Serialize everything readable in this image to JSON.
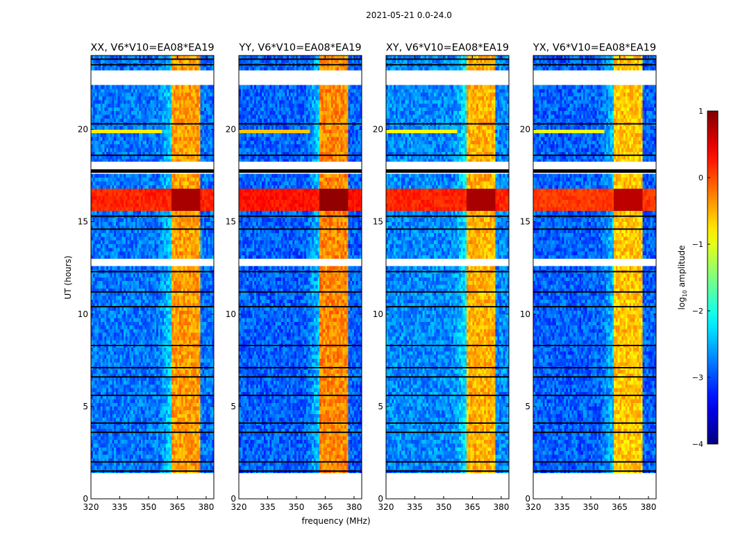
{
  "chart_data": {
    "type": "heatmap",
    "title": "2021-05-21 0.0-24.0",
    "xlabel": "frequency (MHz)",
    "ylabel": "UT (hours)",
    "xlim": [
      320,
      384
    ],
    "ylim": [
      0,
      24
    ],
    "xticks": [
      320,
      335,
      350,
      365,
      380
    ],
    "yticks": [
      0,
      5,
      10,
      15,
      20
    ],
    "colorbar": {
      "label_main": "log",
      "label_sub": "10",
      "label_rest": " amplitude",
      "range": [
        -4,
        1
      ],
      "ticks": [
        1,
        0,
        -1,
        -2,
        -3,
        -4
      ],
      "tick_labels": [
        "1",
        "0",
        "−1",
        "−2",
        "−3",
        "−4"
      ],
      "colormap": "jet"
    },
    "panels": [
      {
        "title": "XX, V6*V10=EA08*EA19",
        "base": -2.8,
        "rfi_level": -0.4,
        "storm_level": 0.4,
        "line20_level": -0.8
      },
      {
        "title": "YY, V6*V10=EA08*EA19",
        "base": -2.9,
        "rfi_level": -0.3,
        "storm_level": 0.5,
        "line20_level": -0.6
      },
      {
        "title": "XY, V6*V10=EA08*EA19",
        "base": -2.7,
        "rfi_level": -0.5,
        "storm_level": 0.4,
        "line20_level": -0.9
      },
      {
        "title": "YX, V6*V10=EA08*EA19",
        "base": -2.9,
        "rfi_level": -0.6,
        "storm_level": 0.3,
        "line20_level": -1.0
      }
    ],
    "rfi_ranges_mhz": [
      [
        362.5,
        366
      ],
      [
        366.5,
        370
      ],
      [
        370.5,
        374
      ],
      [
        374.5,
        377.5
      ]
    ],
    "storm_hours": [
      15.6,
      16.9
    ],
    "line20_range": {
      "hours": [
        19.85,
        20.0
      ],
      "mhz": [
        320,
        357
      ]
    },
    "flagged_hours": [
      [
        0.1,
        1.35
      ],
      [
        12.55,
        13.0
      ],
      [
        17.65,
        18.25
      ],
      [
        22.4,
        23.3
      ]
    ],
    "dark_line_hours": [
      1.5,
      2.0,
      3.6,
      4.1,
      5.6,
      6.6,
      7.1,
      8.3,
      10.4,
      11.2,
      12.3,
      14.6,
      15.3,
      18.6,
      20.3,
      23.5,
      23.8
    ]
  }
}
